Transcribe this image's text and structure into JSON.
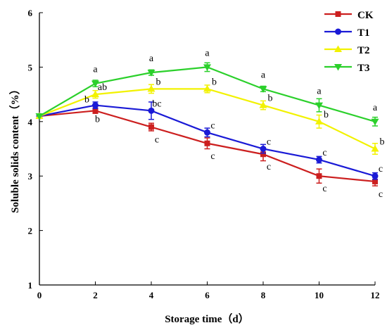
{
  "chart_data": {
    "type": "line",
    "xlabel": "Storage time（d）",
    "ylabel": "Soluble solids content（%）",
    "x": [
      0,
      2,
      4,
      6,
      8,
      10,
      12
    ],
    "xlim": [
      0,
      12
    ],
    "ylim": [
      1,
      6
    ],
    "x_ticks": [
      "0",
      "2",
      "4",
      "6",
      "8",
      "10",
      "12"
    ],
    "y_ticks": [
      "1",
      "2",
      "3",
      "4",
      "5",
      "6"
    ],
    "grid": false,
    "legend_position": "top-right",
    "series": [
      {
        "name": "CK",
        "color": "#cc1f1f",
        "marker": "square",
        "values": [
          4.1,
          4.2,
          3.9,
          3.6,
          3.4,
          3.0,
          2.9
        ],
        "errors": [
          0,
          0.05,
          0.07,
          0.1,
          0.12,
          0.13,
          0.08
        ],
        "sig_labels": [
          "",
          "b",
          "c",
          "c",
          "c",
          "c",
          "c"
        ]
      },
      {
        "name": "T1",
        "color": "#1a1ad6",
        "marker": "circle",
        "values": [
          4.1,
          4.3,
          4.2,
          3.8,
          3.5,
          3.3,
          3.0
        ],
        "errors": [
          0,
          0.06,
          0.16,
          0.08,
          0.08,
          0.06,
          0.06
        ],
        "sig_labels": [
          "",
          "b",
          "bc",
          "c",
          "c",
          "c",
          "c"
        ]
      },
      {
        "name": "T2",
        "color": "#f2f200",
        "marker": "triangle-up",
        "values": [
          4.1,
          4.5,
          4.6,
          4.6,
          4.3,
          4.0,
          3.5
        ],
        "errors": [
          0,
          0.07,
          0.08,
          0.07,
          0.08,
          0.12,
          0.1
        ],
        "sig_labels": [
          "",
          "ab",
          "b",
          "b",
          "b",
          "b",
          "b"
        ]
      },
      {
        "name": "T3",
        "color": "#2bd02b",
        "marker": "triangle-down",
        "values": [
          4.1,
          4.7,
          4.9,
          5.0,
          4.6,
          4.3,
          4.0
        ],
        "errors": [
          0,
          0.06,
          0.05,
          0.08,
          0.05,
          0.12,
          0.08
        ],
        "sig_labels": [
          "",
          "a",
          "a",
          "a",
          "a",
          "a",
          "a"
        ]
      }
    ]
  }
}
